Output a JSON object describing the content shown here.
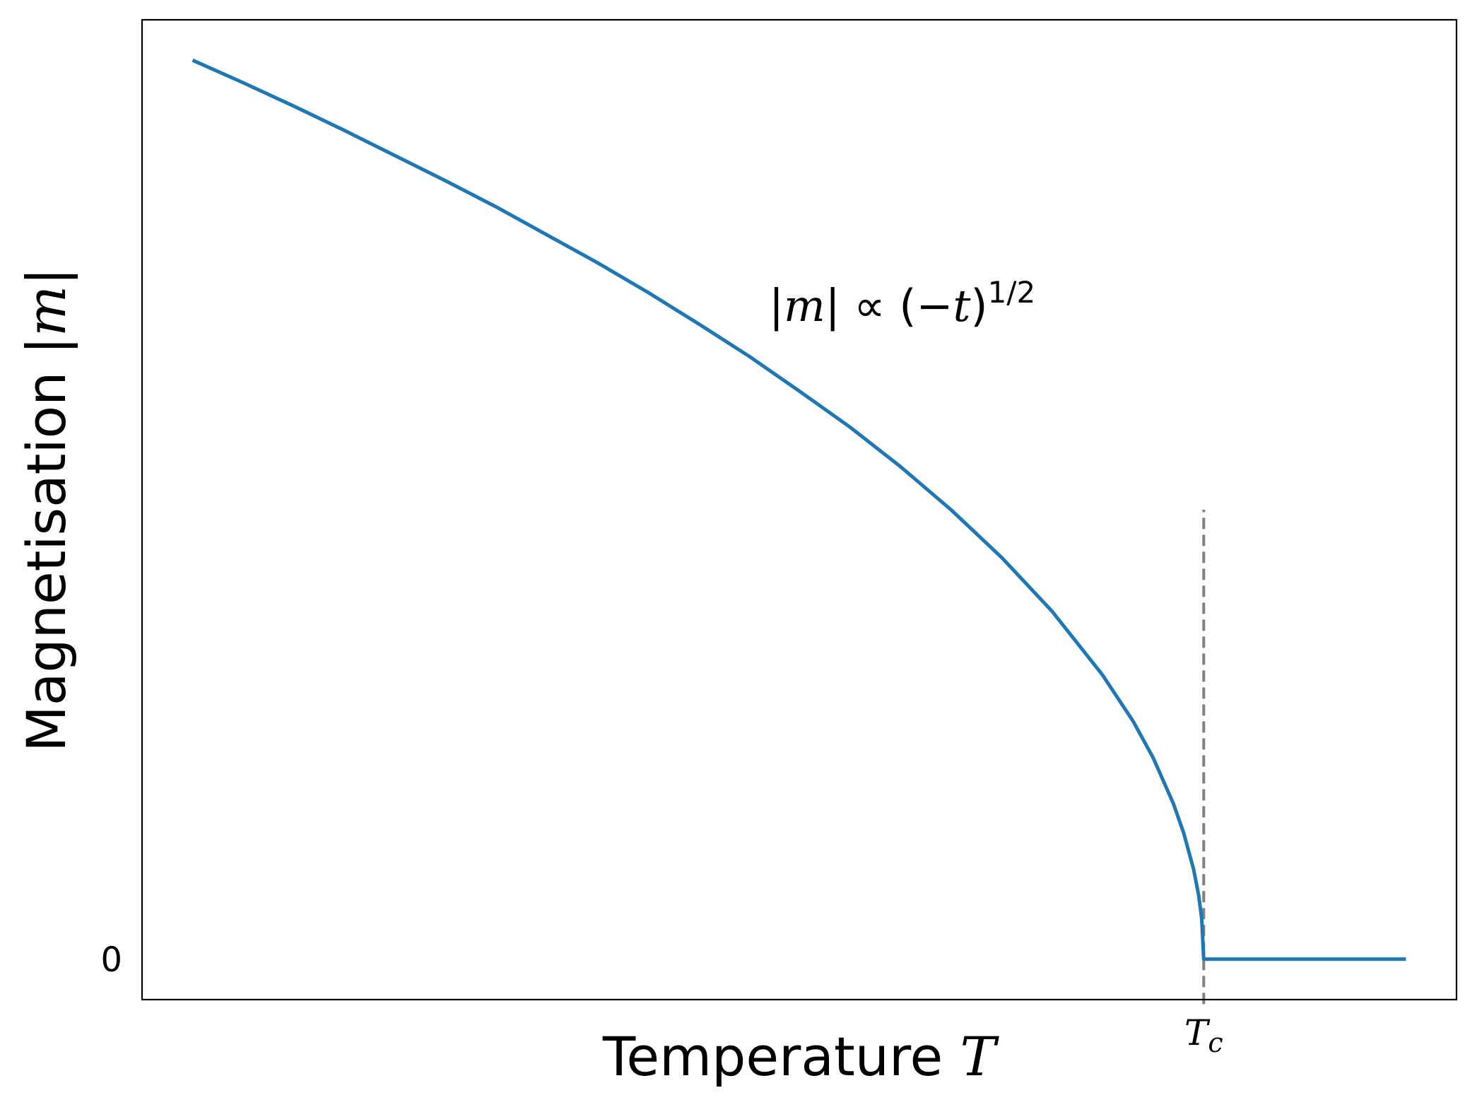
{
  "chart_data": {
    "type": "line",
    "title": "",
    "xlabel": {
      "text": "Temperature ",
      "symbol": "T"
    },
    "ylabel": {
      "text": "Magnetisation |",
      "symbol": "m",
      "close": "|"
    },
    "xlim": [
      -1.05,
      0.25
    ],
    "ylim": [
      -0.045,
      1.045
    ],
    "yticks": [
      {
        "value": 0,
        "label": "0"
      }
    ],
    "xticks": [
      {
        "value": 0,
        "label_main": "T",
        "label_sub": "c"
      }
    ],
    "critical_line": {
      "x": 0,
      "y_range": [
        -0.05,
        0.5
      ],
      "color": "#808080",
      "style": "dashed"
    },
    "annotation": {
      "x": -0.43,
      "y": 0.71,
      "parts": [
        "|",
        "m",
        "| ∝ (−",
        "t",
        ")",
        "1/2"
      ]
    },
    "series": [
      {
        "color": "#1f77b4",
        "x": [
          -1.0,
          -0.95,
          -0.9,
          -0.85,
          -0.8,
          -0.75,
          -0.7,
          -0.65,
          -0.6,
          -0.55,
          -0.5,
          -0.45,
          -0.4,
          -0.35,
          -0.3,
          -0.25,
          -0.2,
          -0.15,
          -0.1,
          -0.07,
          -0.05,
          -0.03,
          -0.02,
          -0.01,
          -0.005,
          -0.002,
          0.0,
          0.05,
          0.1,
          0.15,
          0.2
        ],
        "y": [
          1.0,
          0.975,
          0.949,
          0.922,
          0.894,
          0.866,
          0.837,
          0.806,
          0.775,
          0.742,
          0.707,
          0.671,
          0.632,
          0.592,
          0.548,
          0.5,
          0.447,
          0.387,
          0.316,
          0.265,
          0.224,
          0.173,
          0.141,
          0.1,
          0.071,
          0.045,
          0.0,
          0.0,
          0.0,
          0.0,
          0.0
        ]
      }
    ],
    "grid": false,
    "legend": "none"
  }
}
